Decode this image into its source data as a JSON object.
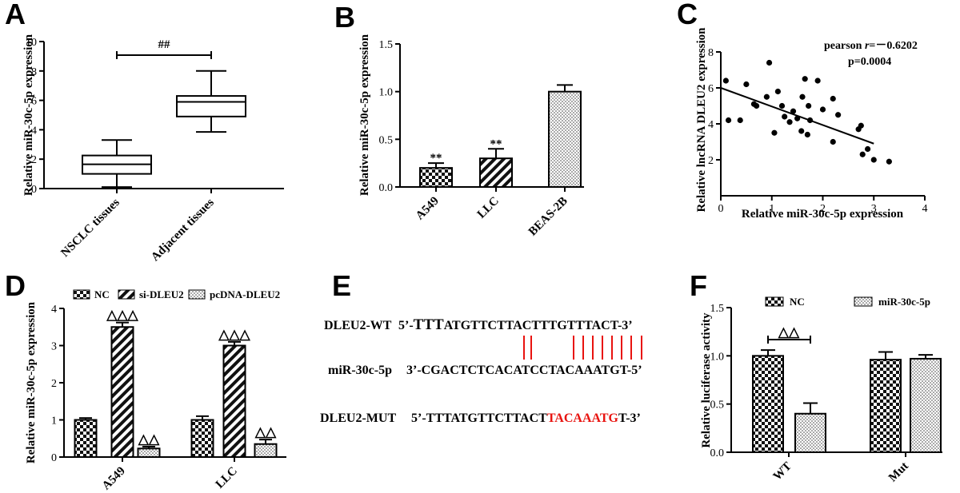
{
  "panels": {
    "A": {
      "letter": "A"
    },
    "B": {
      "letter": "B"
    },
    "C": {
      "letter": "C"
    },
    "D": {
      "letter": "D"
    },
    "E": {
      "letter": "E"
    },
    "F": {
      "letter": "F"
    }
  },
  "chart_data": [
    {
      "id": "A",
      "type": "box",
      "ylabel": "Relative miR-30c-5p expression",
      "ylim": [
        0,
        10
      ],
      "yticks": [
        0,
        2,
        4,
        6,
        8,
        10
      ],
      "categories": [
        "NSCLC tissues",
        "Adjacent tissues"
      ],
      "boxes": [
        {
          "min": 0.1,
          "q1": 1.0,
          "median": 1.65,
          "q3": 2.25,
          "max": 3.3
        },
        {
          "min": 3.85,
          "q1": 4.9,
          "median": 5.9,
          "q3": 6.3,
          "max": 8.0
        }
      ],
      "significance": "##"
    },
    {
      "id": "B",
      "type": "bar",
      "ylabel": "Relative miR-30c-5p expression",
      "ylim": [
        0,
        1.5
      ],
      "yticks": [
        "0.0",
        "0.5",
        "1.0",
        "1.5"
      ],
      "categories": [
        "A549",
        "LLC",
        "BEAS-2B"
      ],
      "values": [
        0.2,
        0.3,
        1.0
      ],
      "errors": [
        0.05,
        0.1,
        0.07
      ],
      "patterns": [
        "check",
        "diag",
        "dots"
      ],
      "labels": [
        "**",
        "**",
        ""
      ]
    },
    {
      "id": "C",
      "type": "scatter",
      "xlabel": "Relative miR-30c-5p expression",
      "ylabel": "Relative lncRNA DLEU2 expression",
      "xlim": [
        0,
        4
      ],
      "ylim": [
        0,
        8
      ],
      "xticks": [
        0,
        1,
        2,
        3,
        4
      ],
      "yticks": [
        2,
        4,
        6,
        8
      ],
      "stat_prefix": "pearson ",
      "stat_r": "r",
      "stat_value": "=－0.6202",
      "pvalue": "p=0.0004",
      "points": [
        [
          0.1,
          6.4
        ],
        [
          0.15,
          4.2
        ],
        [
          0.38,
          4.2
        ],
        [
          0.5,
          6.2
        ],
        [
          0.65,
          5.1
        ],
        [
          0.7,
          5.0
        ],
        [
          0.95,
          7.4
        ],
        [
          0.9,
          5.5
        ],
        [
          1.05,
          3.5
        ],
        [
          1.12,
          5.8
        ],
        [
          1.2,
          5.0
        ],
        [
          1.25,
          4.4
        ],
        [
          1.35,
          4.1
        ],
        [
          1.42,
          4.7
        ],
        [
          1.5,
          4.3
        ],
        [
          1.58,
          3.6
        ],
        [
          1.6,
          5.5
        ],
        [
          1.65,
          6.5
        ],
        [
          1.72,
          5.0
        ],
        [
          1.7,
          3.4
        ],
        [
          1.75,
          4.2
        ],
        [
          1.9,
          6.4
        ],
        [
          2.0,
          4.8
        ],
        [
          2.2,
          5.4
        ],
        [
          2.2,
          3.0
        ],
        [
          2.3,
          4.5
        ],
        [
          2.7,
          3.7
        ],
        [
          2.75,
          3.9
        ],
        [
          2.78,
          2.3
        ],
        [
          2.88,
          2.6
        ],
        [
          3.0,
          2.0
        ],
        [
          3.3,
          1.9
        ]
      ],
      "fit": [
        [
          0,
          6.0
        ],
        [
          3.0,
          2.9
        ]
      ]
    },
    {
      "id": "D",
      "type": "bar",
      "ylabel": "Relative miR-30c-5p expression",
      "ylim": [
        0,
        4
      ],
      "yticks": [
        0,
        1,
        2,
        3,
        4
      ],
      "categories": [
        "A549",
        "LLC"
      ],
      "series": [
        {
          "name": "NC",
          "values": [
            1.0,
            1.0
          ],
          "errors": [
            0.05,
            0.1
          ],
          "pattern": "check"
        },
        {
          "name": "si-DLEU2",
          "values": [
            3.5,
            3.0
          ],
          "errors": [
            0.12,
            0.1
          ],
          "pattern": "diag"
        },
        {
          "name": "pcDNA-DLEU2",
          "values": [
            0.23,
            0.35
          ],
          "errors": [
            0.05,
            0.12
          ],
          "pattern": "dots"
        }
      ],
      "labels": [
        [
          "",
          "△△△",
          "△△"
        ],
        [
          "",
          "△△△",
          "△△"
        ]
      ]
    },
    {
      "id": "F",
      "type": "bar",
      "ylabel": "Relative luciferase activity",
      "ylim": [
        0,
        1.5
      ],
      "yticks": [
        "0.0",
        "0.5",
        "1.0",
        "1.5"
      ],
      "categories": [
        "WT",
        "Mut"
      ],
      "series": [
        {
          "name": "NC",
          "values": [
            1.0,
            0.96
          ],
          "errors": [
            0.06,
            0.08
          ],
          "pattern": "check"
        },
        {
          "name": "miR-30c-5p",
          "values": [
            0.4,
            0.97
          ],
          "errors": [
            0.11,
            0.04
          ],
          "pattern": "dots"
        }
      ],
      "significance": "△△"
    }
  ],
  "sequences": {
    "wt": {
      "label": "DLEU2-WT",
      "prefix": "5’-",
      "big": "TTT",
      "body": "ATGTTCTTACTTTGTTTACT-3’"
    },
    "mir": {
      "label": "miR-30c-5p",
      "text": "3’-CGACTCTCACATCCTACAAATGT-5’"
    },
    "mut": {
      "label": "DLEU2-MUT",
      "prefix": "5’-TTTATGTTCTTACT",
      "red": "TACAAATG",
      "suffix": "T-3’"
    },
    "red_color": "#e8130f"
  }
}
